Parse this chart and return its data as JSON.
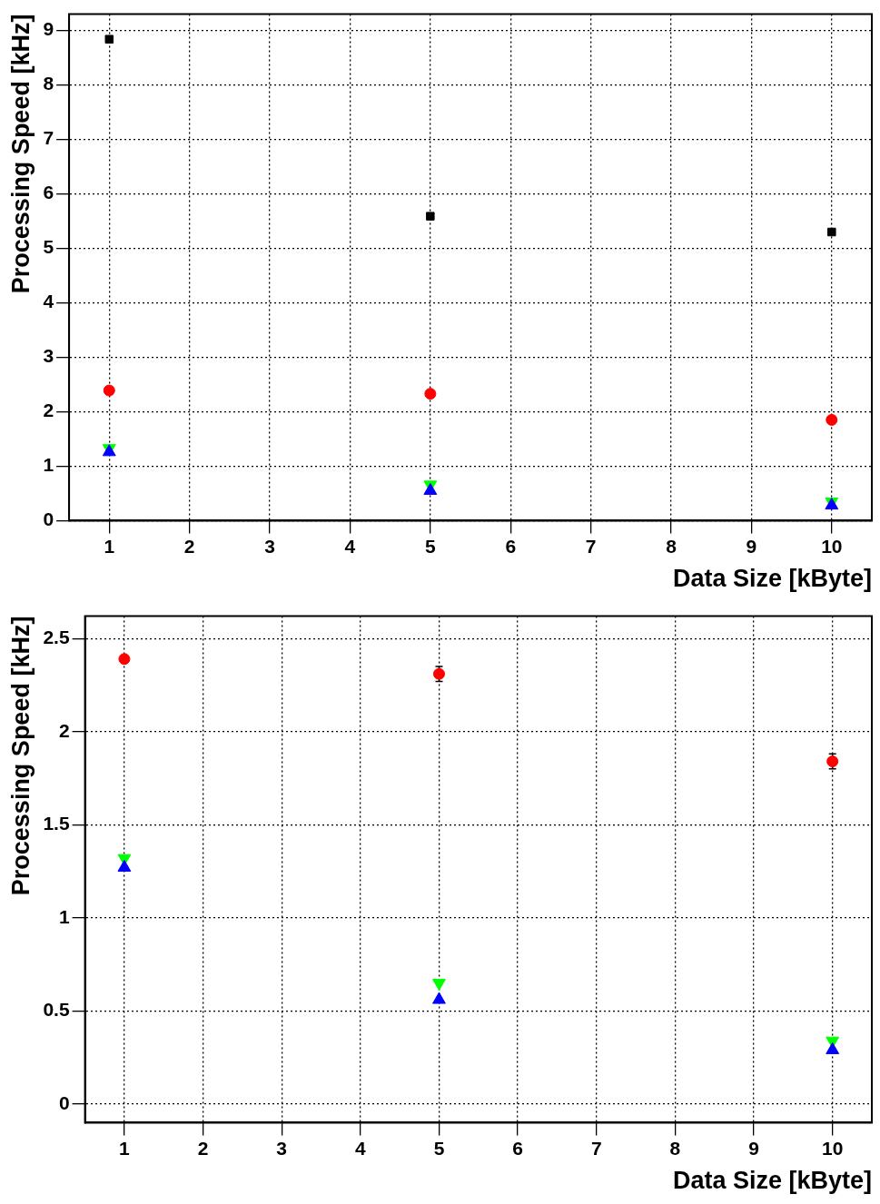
{
  "chart_data": [
    {
      "type": "scatter",
      "xlabel": "Data Size [kByte]",
      "ylabel": "Processing Speed [kHz]",
      "x": [
        1,
        5,
        10
      ],
      "xlim": [
        0.5,
        10.5
      ],
      "xticks": [
        1,
        2,
        3,
        4,
        5,
        6,
        7,
        8,
        9,
        10
      ],
      "ylim": [
        0,
        9.3
      ],
      "yticks": [
        0,
        1,
        2,
        3,
        4,
        5,
        6,
        7,
        8,
        9
      ],
      "grid": true,
      "legend": false,
      "series": [
        {
          "color": "#000000",
          "marker": "square",
          "values": [
            8.84,
            5.59,
            5.3
          ]
        },
        {
          "color": "#ff0000",
          "marker": "circle",
          "values": [
            2.39,
            2.33,
            1.85
          ]
        },
        {
          "color": "#00ff00",
          "marker": "triangle-down",
          "values": [
            1.33,
            0.66,
            0.35
          ]
        },
        {
          "color": "#0000ff",
          "marker": "triangle",
          "values": [
            1.26,
            0.55,
            0.28
          ]
        }
      ]
    },
    {
      "type": "scatter",
      "xlabel": "Data Size [kByte]",
      "ylabel": "Processing Speed [kHz]",
      "x": [
        1,
        5,
        10
      ],
      "xlim": [
        0.5,
        10.5
      ],
      "xticks": [
        1,
        2,
        3,
        4,
        5,
        6,
        7,
        8,
        9,
        10
      ],
      "ylim": [
        -0.1,
        2.62
      ],
      "yticks": [
        0,
        0.5,
        1,
        1.5,
        2,
        2.5
      ],
      "grid": true,
      "legend": false,
      "series": [
        {
          "color": "#ff0000",
          "marker": "circle",
          "values": [
            2.39,
            2.31,
            1.84
          ],
          "errors": [
            null,
            0.04,
            0.04
          ]
        },
        {
          "color": "#00ff00",
          "marker": "triangle-down",
          "values": [
            1.32,
            0.65,
            0.34
          ]
        },
        {
          "color": "#0000ff",
          "marker": "triangle",
          "values": [
            1.27,
            0.56,
            0.29
          ]
        }
      ]
    }
  ]
}
